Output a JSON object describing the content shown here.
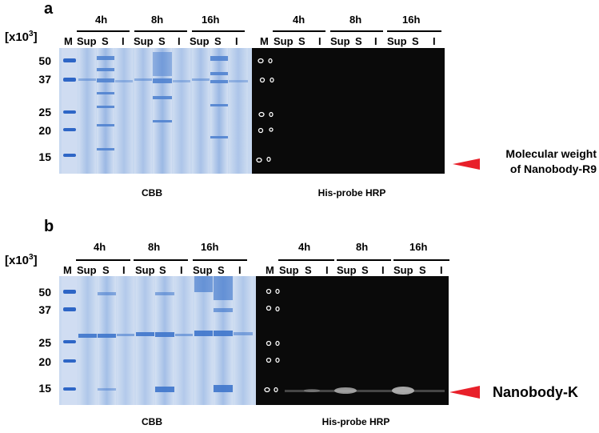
{
  "panels": [
    {
      "letter": "a",
      "unit": "[x10",
      "unit_exp": "3",
      "unit_close": "]",
      "marker_label": "M",
      "timepoints": [
        "4h",
        "8h",
        "16h"
      ],
      "lanes": [
        "Sup",
        "S",
        "I"
      ],
      "mw_markers": [
        "50",
        "37",
        "25",
        "20",
        "15"
      ],
      "left_caption": "CBB",
      "right_caption": "His-probe  HRP",
      "annotation": [
        "Molecular weight",
        "of Nanobody-R9"
      ],
      "arrow_color": "#e8202a"
    },
    {
      "letter": "b",
      "unit": "[x10",
      "unit_exp": "3",
      "unit_close": "]",
      "marker_label": "M",
      "timepoints": [
        "4h",
        "8h",
        "16h"
      ],
      "lanes": [
        "Sup",
        "S",
        "I"
      ],
      "mw_markers": [
        "50",
        "37",
        "25",
        "20",
        "15"
      ],
      "left_caption": "CBB",
      "right_caption": "His-probe  HRP",
      "annotation": [
        "Nanobody-K"
      ],
      "arrow_color": "#e8202a"
    }
  ],
  "colors": {
    "cbb_bg": "#c3d5ee",
    "cbb_band": "#2f69c4",
    "blot_bg": "#0a0a0a"
  }
}
